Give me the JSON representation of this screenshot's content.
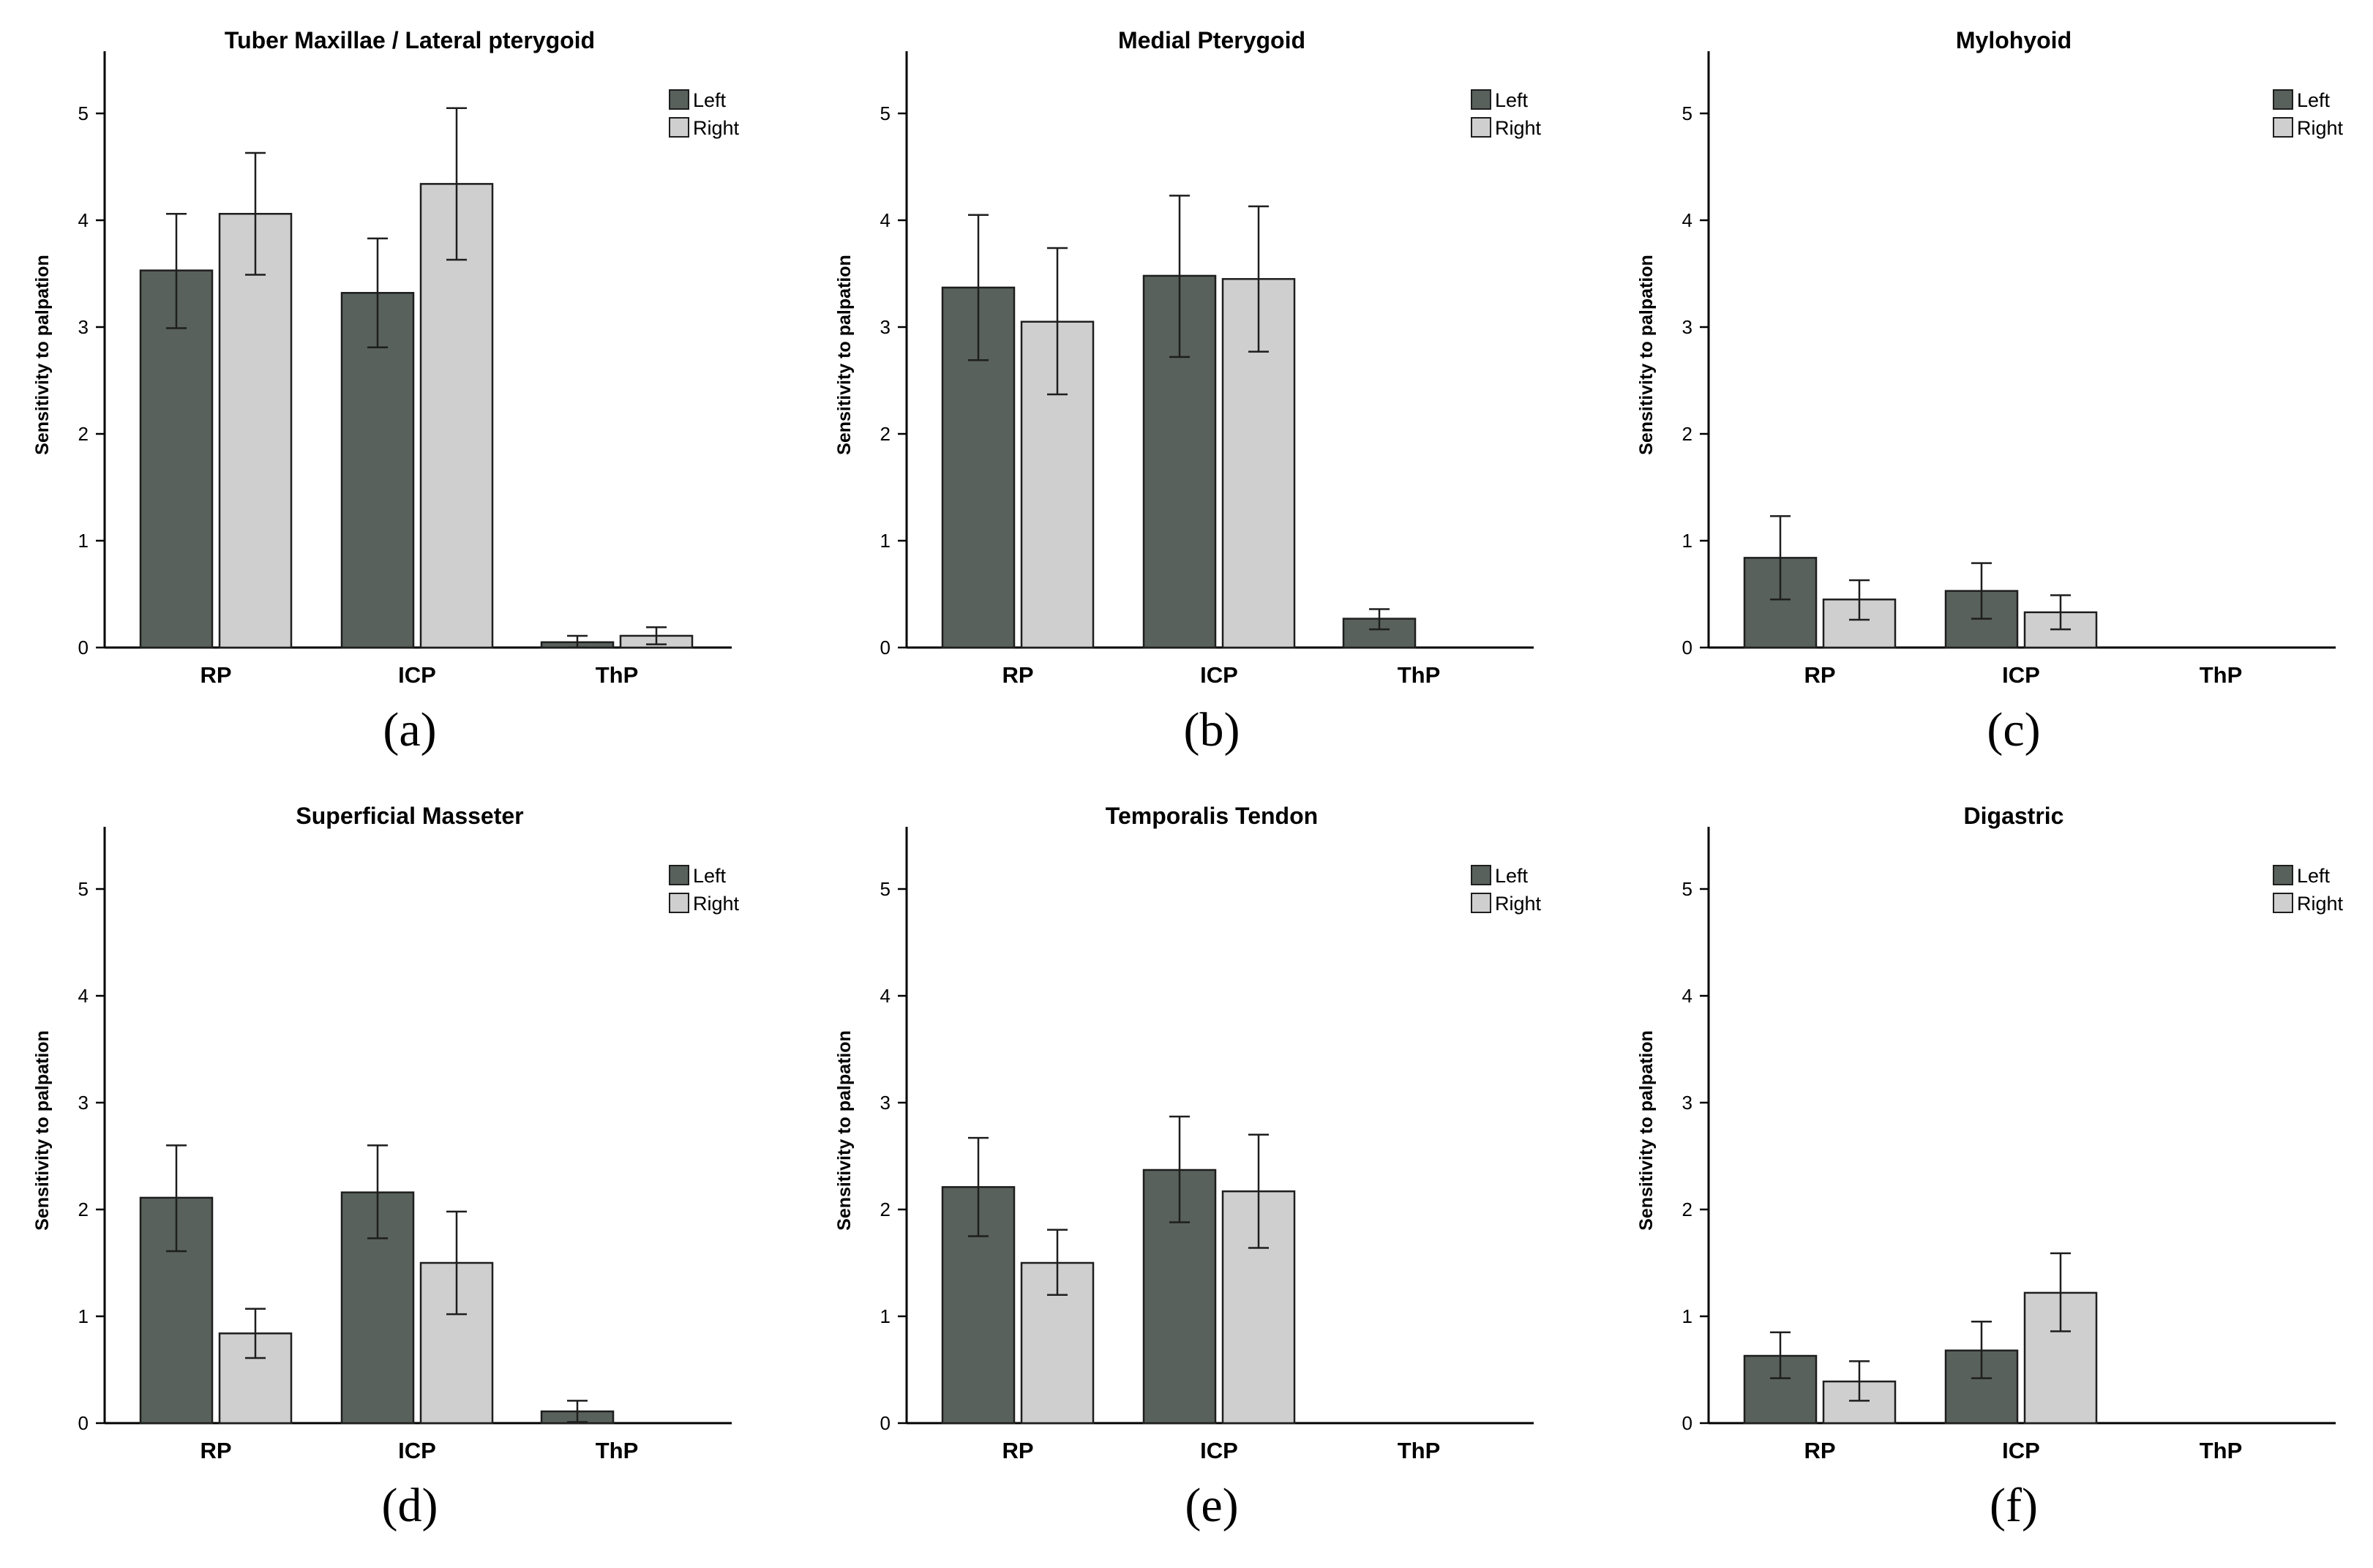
{
  "colors": {
    "left": "#58615b",
    "right": "#cfcfcf",
    "edge": "#1e1e1e",
    "axis": "#000000"
  },
  "legend": {
    "left_label": "Left",
    "right_label": "Right"
  },
  "chart_data": [
    {
      "id": "a",
      "panel_label": "(a)",
      "type": "bar",
      "title": "Tuber Maxillae / Lateral pterygoid",
      "xlabel": "",
      "ylabel": "Sensitivity to palpation",
      "ylim": [
        0,
        5.5
      ],
      "yticks": [
        "0",
        "1",
        "2",
        "3",
        "4",
        "5"
      ],
      "categories": [
        "RP",
        "ICP",
        "ThP"
      ],
      "series": [
        {
          "name": "Left",
          "values": [
            3.53,
            3.32,
            0.05
          ],
          "err_low": [
            2.99,
            2.81,
            0.0
          ],
          "err_high": [
            4.06,
            3.83,
            0.11
          ]
        },
        {
          "name": "Right",
          "values": [
            4.06,
            4.34,
            0.11
          ],
          "err_low": [
            3.49,
            3.63,
            0.03
          ],
          "err_high": [
            4.63,
            5.05,
            0.19
          ]
        }
      ]
    },
    {
      "id": "b",
      "panel_label": "(b)",
      "type": "bar",
      "title": "Medial Pterygoid",
      "xlabel": "",
      "ylabel": "Sensitivity to palpation",
      "ylim": [
        0,
        5.5
      ],
      "yticks": [
        "0",
        "1",
        "2",
        "3",
        "4",
        "5"
      ],
      "categories": [
        "RP",
        "ICP",
        "ThP"
      ],
      "series": [
        {
          "name": "Left",
          "values": [
            3.37,
            3.48,
            0.27
          ],
          "err_low": [
            2.69,
            2.72,
            0.17
          ],
          "err_high": [
            4.05,
            4.23,
            0.36
          ]
        },
        {
          "name": "Right",
          "values": [
            3.05,
            3.45,
            0.0
          ],
          "err_low": [
            2.37,
            2.77,
            0.0
          ],
          "err_high": [
            3.74,
            4.13,
            0.0
          ]
        }
      ]
    },
    {
      "id": "c",
      "panel_label": "(c)",
      "type": "bar",
      "title": "Mylohyoid",
      "xlabel": "",
      "ylabel": "Sensitivity to palpation",
      "ylim": [
        0,
        5.5
      ],
      "yticks": [
        "0",
        "1",
        "2",
        "3",
        "4",
        "5"
      ],
      "categories": [
        "RP",
        "ICP",
        "ThP"
      ],
      "series": [
        {
          "name": "Left",
          "values": [
            0.84,
            0.53,
            0.0
          ],
          "err_low": [
            0.45,
            0.27,
            0.0
          ],
          "err_high": [
            1.23,
            0.79,
            0.0
          ]
        },
        {
          "name": "Right",
          "values": [
            0.45,
            0.33,
            0.0
          ],
          "err_low": [
            0.26,
            0.17,
            0.0
          ],
          "err_high": [
            0.63,
            0.49,
            0.0
          ]
        }
      ]
    },
    {
      "id": "d",
      "panel_label": "(d)",
      "type": "bar",
      "title": "Superficial Masseter",
      "xlabel": "",
      "ylabel": "Sensitivity to palpation",
      "ylim": [
        0,
        5.5
      ],
      "yticks": [
        "0",
        "1",
        "2",
        "3",
        "4",
        "5"
      ],
      "categories": [
        "RP",
        "ICP",
        "ThP"
      ],
      "series": [
        {
          "name": "Left",
          "values": [
            2.11,
            2.16,
            0.11
          ],
          "err_low": [
            1.61,
            1.73,
            0.01
          ],
          "err_high": [
            2.6,
            2.6,
            0.21
          ]
        },
        {
          "name": "Right",
          "values": [
            0.84,
            1.5,
            0.0
          ],
          "err_low": [
            0.61,
            1.02,
            0.0
          ],
          "err_high": [
            1.07,
            1.98,
            0.0
          ]
        }
      ]
    },
    {
      "id": "e",
      "panel_label": "(e)",
      "type": "bar",
      "title": "Temporalis Tendon",
      "xlabel": "",
      "ylabel": "Sensitivity to palpation",
      "ylim": [
        0,
        5.5
      ],
      "yticks": [
        "0",
        "1",
        "2",
        "3",
        "4",
        "5"
      ],
      "categories": [
        "RP",
        "ICP",
        "ThP"
      ],
      "series": [
        {
          "name": "Left",
          "values": [
            2.21,
            2.37,
            0.0
          ],
          "err_low": [
            1.75,
            1.88,
            0.0
          ],
          "err_high": [
            2.67,
            2.87,
            0.0
          ]
        },
        {
          "name": "Right",
          "values": [
            1.5,
            2.17,
            0.0
          ],
          "err_low": [
            1.2,
            1.64,
            0.0
          ],
          "err_high": [
            1.81,
            2.7,
            0.0
          ]
        }
      ]
    },
    {
      "id": "f",
      "panel_label": "(f)",
      "type": "bar",
      "title": "Digastric",
      "xlabel": "",
      "ylabel": "Sensitivity to palpation",
      "ylim": [
        0,
        5.5
      ],
      "yticks": [
        "0",
        "1",
        "2",
        "3",
        "4",
        "5"
      ],
      "categories": [
        "RP",
        "ICP",
        "ThP"
      ],
      "series": [
        {
          "name": "Left",
          "values": [
            0.63,
            0.68,
            0.0
          ],
          "err_low": [
            0.42,
            0.42,
            0.0
          ],
          "err_high": [
            0.85,
            0.95,
            0.0
          ]
        },
        {
          "name": "Right",
          "values": [
            0.39,
            1.22,
            0.0
          ],
          "err_low": [
            0.21,
            0.86,
            0.0
          ],
          "err_high": [
            0.58,
            1.59,
            0.0
          ]
        }
      ]
    }
  ]
}
